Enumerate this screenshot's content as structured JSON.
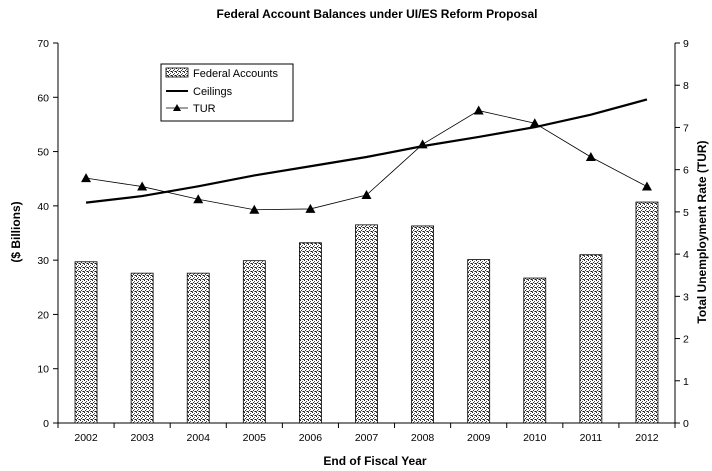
{
  "chart_data": {
    "type": "bar",
    "title": "Federal Account Balances under UI/ES Reform Proposal",
    "xlabel": "End of Fiscal Year",
    "ylabel": "($ Billions)",
    "y2label": "Total Unemployment Rate (TUR)",
    "categories": [
      "2002",
      "2003",
      "2004",
      "2005",
      "2006",
      "2007",
      "2008",
      "2009",
      "2010",
      "2011",
      "2012"
    ],
    "ylim": [
      0,
      70
    ],
    "yticks": [
      0,
      10,
      20,
      30,
      40,
      50,
      60,
      70
    ],
    "y2lim": [
      0,
      9
    ],
    "y2ticks": [
      0,
      1,
      2,
      3,
      4,
      5,
      6,
      7,
      8,
      9
    ],
    "grid": false,
    "legend_position": "top-left",
    "series": [
      {
        "name": "Federal Accounts",
        "type": "bar",
        "axis": "left",
        "color": "#999999",
        "values": [
          29.7,
          27.6,
          27.6,
          29.9,
          33.2,
          36.5,
          36.3,
          30.1,
          26.7,
          31.0,
          40.7
        ]
      },
      {
        "name": "Ceilings",
        "type": "line",
        "axis": "left",
        "color": "#000000",
        "values": [
          40.6,
          41.8,
          43.6,
          45.6,
          47.3,
          49.0,
          51.0,
          52.7,
          54.5,
          56.8,
          59.6
        ]
      },
      {
        "name": "TUR",
        "type": "line",
        "axis": "right",
        "marker": "triangle",
        "color": "#000000",
        "values": [
          5.8,
          5.6,
          5.3,
          5.05,
          5.07,
          5.4,
          6.6,
          7.4,
          7.1,
          6.3,
          5.6
        ]
      }
    ]
  }
}
